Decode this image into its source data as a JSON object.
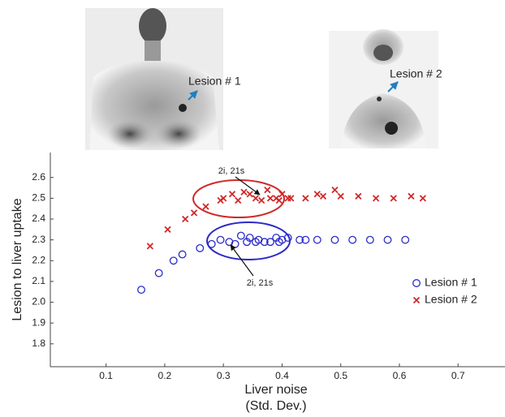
{
  "chart_data": {
    "type": "scatter",
    "image_labels": [
      "Lesion # 1",
      "Lesion # 2"
    ],
    "annotations": [
      "2i, 21s",
      "2i, 21s"
    ],
    "xlabel": [
      "Liver noise",
      "(Std. Dev.)"
    ],
    "ylabel": "Lesion to liver uptake",
    "xlim": [
      0.005,
      0.78
    ],
    "ylim": [
      1.69,
      2.72
    ],
    "xticks": [
      0.1,
      0.2,
      0.3,
      0.4,
      0.5,
      0.6,
      0.7
    ],
    "yticks": [
      1.8,
      1.9,
      {
        "value": 2,
        "label": "2.0"
      },
      2.1,
      2.2,
      2.3,
      2.4,
      2.5,
      2.6
    ],
    "series": [
      {
        "name": "Lesion # 1",
        "color": "#2a2ac8",
        "marker": "circle",
        "x": [
          0.16,
          0.19,
          0.215,
          0.23,
          0.26,
          0.28,
          0.295,
          0.31,
          0.32,
          0.33,
          0.34,
          0.345,
          0.355,
          0.36,
          0.37,
          0.38,
          0.39,
          0.395,
          0.4,
          0.41,
          0.43,
          0.44,
          0.46,
          0.49,
          0.52,
          0.55,
          0.58,
          0.61
        ],
        "values": [
          2.06,
          2.14,
          2.2,
          2.23,
          2.26,
          2.28,
          2.3,
          2.29,
          2.28,
          2.32,
          2.29,
          2.31,
          2.29,
          2.3,
          2.29,
          2.29,
          2.31,
          2.29,
          2.3,
          2.31,
          2.3,
          2.3,
          2.3,
          2.3,
          2.3,
          2.3,
          2.3,
          2.3
        ]
      },
      {
        "name": "Lesion # 2",
        "color": "#d02828",
        "marker": "cross",
        "x": [
          0.175,
          0.205,
          0.235,
          0.25,
          0.27,
          0.295,
          0.3,
          0.315,
          0.325,
          0.335,
          0.345,
          0.355,
          0.365,
          0.375,
          0.38,
          0.39,
          0.395,
          0.4,
          0.41,
          0.415,
          0.44,
          0.46,
          0.47,
          0.49,
          0.5,
          0.53,
          0.56,
          0.59,
          0.62,
          0.64
        ],
        "values": [
          2.27,
          2.35,
          2.4,
          2.43,
          2.46,
          2.49,
          2.5,
          2.52,
          2.49,
          2.53,
          2.52,
          2.5,
          2.49,
          2.54,
          2.5,
          2.5,
          2.49,
          2.52,
          2.5,
          2.5,
          2.5,
          2.52,
          2.51,
          2.54,
          2.51,
          2.51,
          2.5,
          2.5,
          2.51,
          2.5
        ]
      }
    ],
    "legend": "right"
  }
}
